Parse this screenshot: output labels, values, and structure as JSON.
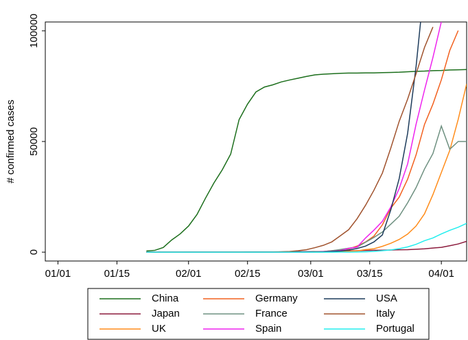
{
  "chart_data": {
    "type": "line",
    "ylabel": "# confirmed cases",
    "legend": "bottom",
    "x": [
      "01/22",
      "01/24",
      "01/26",
      "01/28",
      "01/30",
      "02/01",
      "02/03",
      "02/05",
      "02/07",
      "02/09",
      "02/11",
      "02/13",
      "02/15",
      "02/17",
      "02/19",
      "02/21",
      "02/23",
      "02/25",
      "02/27",
      "02/29",
      "03/02",
      "03/04",
      "03/06",
      "03/08",
      "03/10",
      "03/12",
      "03/14",
      "03/16",
      "03/18",
      "03/20",
      "03/22",
      "03/24",
      "03/26",
      "03/28",
      "03/30",
      "04/01",
      "04/03",
      "04/05",
      "04/07"
    ],
    "xlim": [
      "12/29",
      "04/07"
    ],
    "xticks": [
      "01/01",
      "01/15",
      "02/01",
      "02/15",
      "03/01",
      "03/15",
      "04/01"
    ],
    "ylim": [
      -4000,
      104000
    ],
    "yticks": [
      0,
      50000,
      100000
    ],
    "series": [
      {
        "name": "China",
        "color": "#1b6e1b",
        "values": [
          548,
          830,
          2118,
          5509,
          8235,
          11800,
          17000,
          24300,
          31200,
          37200,
          44300,
          59900,
          66900,
          72400,
          74600,
          75600,
          76900,
          77800,
          78600,
          79400,
          80100,
          80400,
          80600,
          80800,
          80900,
          80900,
          81000,
          81000,
          81100,
          81200,
          81300,
          81500,
          81700,
          81800,
          82000,
          82100,
          82300,
          82400,
          82500
        ]
      },
      {
        "name": "Japan",
        "color": "#8b1a3c",
        "values": [
          2,
          2,
          4,
          7,
          11,
          20,
          20,
          25,
          25,
          26,
          26,
          29,
          43,
          66,
          85,
          105,
          147,
          170,
          214,
          241,
          274,
          293,
          349,
          502,
          581,
          639,
          780,
          839,
          873,
          950,
          1086,
          1140,
          1307,
          1499,
          1866,
          2178,
          2900,
          3700,
          4900
        ]
      },
      {
        "name": "UK",
        "color": "#ff8c1a",
        "values": [
          0,
          0,
          0,
          0,
          0,
          2,
          2,
          2,
          3,
          3,
          8,
          9,
          9,
          9,
          9,
          9,
          9,
          13,
          15,
          23,
          40,
          86,
          164,
          278,
          383,
          596,
          1143,
          1553,
          2642,
          4014,
          5741,
          8164,
          11816,
          17312,
          26000,
          36000,
          46000,
          60000,
          76000
        ]
      },
      {
        "name": "Germany",
        "color": "#f2601e",
        "values": [
          0,
          0,
          0,
          4,
          5,
          8,
          12,
          12,
          13,
          14,
          16,
          16,
          16,
          16,
          16,
          16,
          16,
          18,
          46,
          79,
          159,
          262,
          670,
          1040,
          1457,
          2745,
          4585,
          7272,
          12327,
          19848,
          24873,
          32986,
          43938,
          57695,
          66885,
          77872,
          91159,
          100123,
          null
        ]
      },
      {
        "name": "France",
        "color": "#6e9080",
        "values": [
          0,
          3,
          3,
          4,
          5,
          6,
          6,
          6,
          11,
          11,
          11,
          11,
          12,
          12,
          12,
          12,
          12,
          14,
          57,
          100,
          191,
          285,
          653,
          1209,
          1784,
          2284,
          4480,
          6650,
          9105,
          12612,
          16243,
          22304,
          29155,
          37575,
          44550,
          57000,
          46500,
          50000,
          50000
        ]
      },
      {
        "name": "Spain",
        "color": "#ee22ee",
        "values": [
          0,
          0,
          0,
          0,
          0,
          0,
          0,
          0,
          0,
          0,
          0,
          0,
          0,
          0,
          0,
          0,
          0,
          6,
          23,
          45,
          120,
          222,
          401,
          673,
          1695,
          2277,
          6391,
          9942,
          13910,
          20410,
          28768,
          39885,
          57786,
          73235,
          87956,
          104118,
          null,
          null,
          null
        ]
      },
      {
        "name": "USA",
        "color": "#1c3a5a",
        "values": [
          1,
          2,
          5,
          5,
          6,
          8,
          11,
          12,
          12,
          12,
          13,
          14,
          15,
          15,
          15,
          15,
          15,
          53,
          60,
          68,
          103,
          158,
          319,
          519,
          959,
          1663,
          2726,
          4632,
          7786,
          19100,
          33276,
          53740,
          83836,
          121478,
          null,
          null,
          null,
          null,
          null
        ]
      },
      {
        "name": "Italy",
        "color": "#a0522d",
        "values": [
          0,
          0,
          0,
          0,
          0,
          0,
          0,
          0,
          0,
          0,
          0,
          0,
          0,
          0,
          0,
          20,
          155,
          322,
          655,
          1128,
          2036,
          3089,
          4636,
          7375,
          10149,
          15113,
          21157,
          27980,
          35713,
          47021,
          59138,
          69176,
          80589,
          92472,
          101739,
          null,
          null,
          null,
          null
        ]
      },
      {
        "name": "Portugal",
        "color": "#22eeee",
        "values": [
          0,
          0,
          0,
          0,
          0,
          0,
          0,
          0,
          0,
          0,
          0,
          0,
          0,
          0,
          0,
          0,
          0,
          0,
          0,
          0,
          0,
          0,
          0,
          30,
          41,
          78,
          169,
          331,
          642,
          1020,
          1600,
          2362,
          3544,
          5170,
          6408,
          8251,
          9886,
          11278,
          13000
        ]
      }
    ]
  }
}
